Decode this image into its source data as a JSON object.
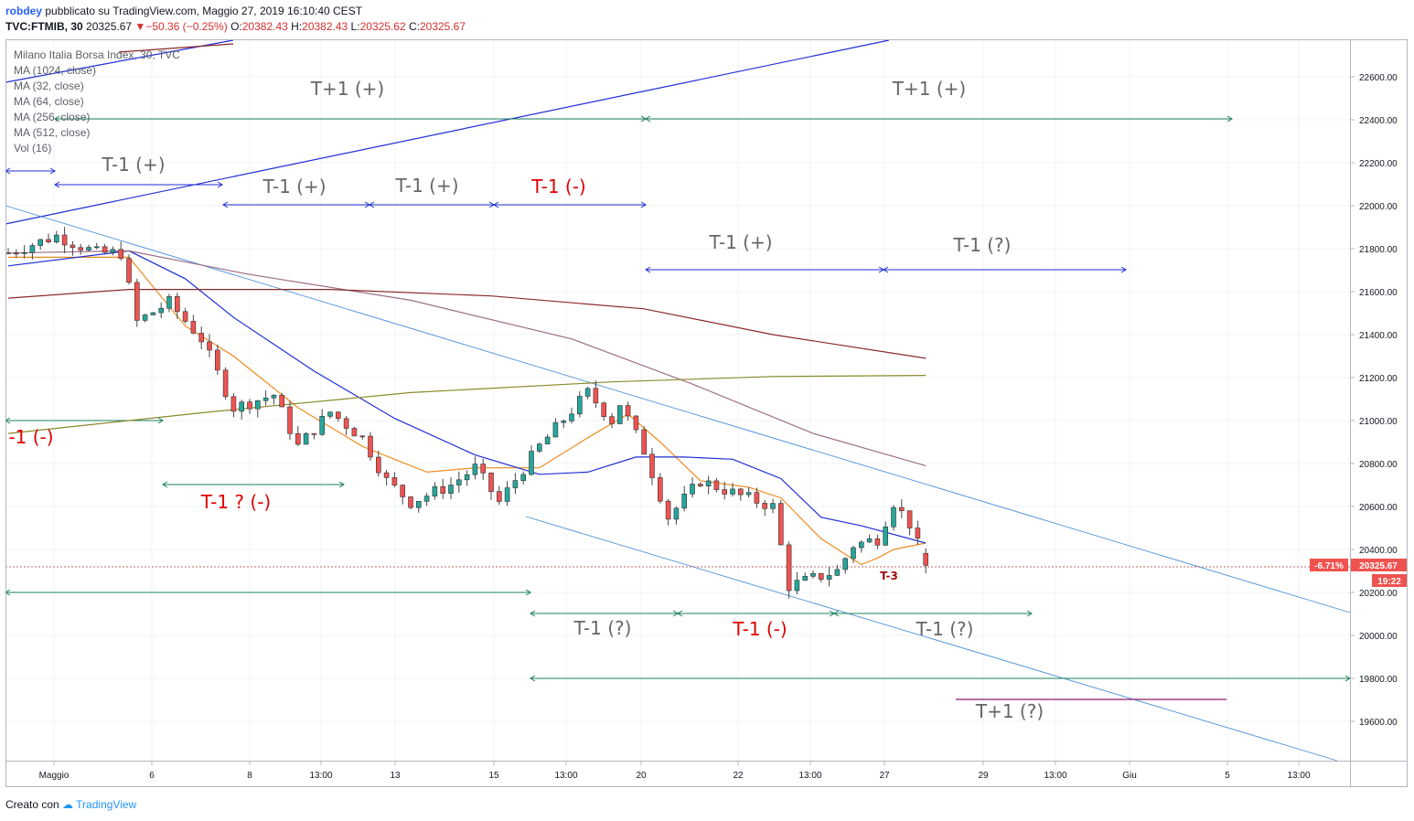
{
  "header": {
    "author": "robdey",
    "published": "pubblicato su TradingView.com, Maggio 27, 2019 16:10:40 CEST",
    "symbol": "TVC:FTMIB, 30",
    "price": "20325.67",
    "change": "−50.36 (−0.25%)",
    "open_label": "O:",
    "open": "20382.43",
    "high_label": "H:",
    "high": "20382.43",
    "low_label": "L:",
    "low": "20325.62",
    "close_label": "C:",
    "close": "20325.67"
  },
  "indicators": [
    "Milano Italia Borsa Index, 30, TVC",
    "MA (1024, close)",
    "MA (32, close)",
    "MA (64, close)",
    "MA (256, close)",
    "MA (512, close)",
    "Vol (16)"
  ],
  "price_badge": {
    "pct": "-6.71%",
    "price": "20325.67",
    "countdown": "19:22"
  },
  "footer": {
    "created": "Creato con",
    "brand": "TradingView"
  },
  "colors": {
    "up": "#26a69a",
    "down": "#ef5350",
    "blue": "#1f2ed6",
    "green": "#1b7f5a",
    "red": "#e00000",
    "gray": "#666666"
  },
  "chart_data": {
    "type": "candlestick",
    "y_axis": {
      "min": 19400,
      "max": 22750,
      "ticks": [
        22600,
        22400,
        22200,
        22000,
        21800,
        21600,
        21400,
        21200,
        21000,
        20800,
        20600,
        20400,
        20200,
        20000,
        19800,
        19600
      ],
      "tick_labels": [
        "22600.00",
        "22400.00",
        "22200.00",
        "22000.00",
        "21800.00",
        "21600.00",
        "21400.00",
        "21200.00",
        "21000.00",
        "20800.00",
        "20600.00",
        "20400.00",
        "20200.00",
        "20000.00",
        "19800.00",
        "19600.00"
      ]
    },
    "x_axis": {
      "tick_labels": [
        "Maggio",
        "6",
        "8",
        "13:00",
        "13",
        "15",
        "13:00",
        "20",
        "22",
        "13:00",
        "27",
        "29",
        "13:00",
        "Giu",
        "5",
        "13:00"
      ]
    },
    "close_path": [
      [
        0,
        21780
      ],
      [
        6,
        21860
      ],
      [
        11,
        21780
      ],
      [
        14,
        21780
      ],
      [
        16,
        21460
      ],
      [
        20,
        21550
      ],
      [
        24,
        21380
      ],
      [
        28,
        21060
      ],
      [
        33,
        21120
      ],
      [
        36,
        20880
      ],
      [
        40,
        21040
      ],
      [
        44,
        20920
      ],
      [
        47,
        20720
      ],
      [
        50,
        20620
      ],
      [
        55,
        20700
      ],
      [
        58,
        20780
      ],
      [
        61,
        20620
      ],
      [
        66,
        20880
      ],
      [
        72,
        21130
      ],
      [
        75,
        21000
      ],
      [
        76,
        21080
      ],
      [
        79,
        20860
      ],
      [
        82,
        20550
      ],
      [
        86,
        20720
      ],
      [
        91,
        20650
      ],
      [
        95,
        20600
      ],
      [
        97,
        20230
      ],
      [
        103,
        20300
      ],
      [
        105,
        20420
      ],
      [
        108,
        20450
      ],
      [
        110,
        20620
      ],
      [
        112,
        20520
      ],
      [
        114,
        20326
      ]
    ],
    "moving_averages": [
      {
        "name": "MA (32, close)",
        "color": "#f08c20",
        "values": [
          [
            0,
            21760
          ],
          [
            15,
            21760
          ],
          [
            22,
            21440
          ],
          [
            28,
            21300
          ],
          [
            36,
            21060
          ],
          [
            44,
            20880
          ],
          [
            52,
            20760
          ],
          [
            58,
            20780
          ],
          [
            66,
            20780
          ],
          [
            72,
            20920
          ],
          [
            77,
            21030
          ],
          [
            81,
            20900
          ],
          [
            86,
            20720
          ],
          [
            92,
            20690
          ],
          [
            96,
            20640
          ],
          [
            101,
            20450
          ],
          [
            106,
            20330
          ],
          [
            108,
            20360
          ],
          [
            110,
            20400
          ],
          [
            114,
            20430
          ]
        ]
      },
      {
        "name": "MA (64, close)",
        "color": "#1f2ed6",
        "values": [
          [
            0,
            21720
          ],
          [
            15,
            21790
          ],
          [
            22,
            21660
          ],
          [
            28,
            21480
          ],
          [
            38,
            21230
          ],
          [
            48,
            21010
          ],
          [
            58,
            20840
          ],
          [
            66,
            20750
          ],
          [
            72,
            20760
          ],
          [
            78,
            20830
          ],
          [
            84,
            20830
          ],
          [
            90,
            20820
          ],
          [
            96,
            20730
          ],
          [
            101,
            20550
          ],
          [
            106,
            20510
          ],
          [
            114,
            20430
          ]
        ]
      },
      {
        "name": "MA (256, close)",
        "color": "#9c6e86",
        "values": [
          [
            0,
            21780
          ],
          [
            15,
            21790
          ],
          [
            30,
            21680
          ],
          [
            50,
            21560
          ],
          [
            70,
            21380
          ],
          [
            85,
            21170
          ],
          [
            100,
            20940
          ],
          [
            114,
            20790
          ]
        ]
      },
      {
        "name": "MA (512, close)",
        "color": "#8a2a2a",
        "values": [
          [
            0,
            21570
          ],
          [
            15,
            21610
          ],
          [
            40,
            21610
          ],
          [
            60,
            21580
          ],
          [
            79,
            21520
          ],
          [
            95,
            21400
          ],
          [
            114,
            21290
          ]
        ]
      },
      {
        "name": "MA (1024, close)",
        "color": "#8a8a2a",
        "values": [
          [
            0,
            20940
          ],
          [
            25,
            21040
          ],
          [
            50,
            21130
          ],
          [
            75,
            21180
          ],
          [
            95,
            21205
          ],
          [
            114,
            21210
          ]
        ]
      }
    ],
    "annotations": [
      {
        "text": "T+1 (+)",
        "color": "gray"
      },
      {
        "text": "T+1 (+)",
        "color": "gray"
      },
      {
        "text": "T-1 (+)",
        "color": "gray"
      },
      {
        "text": "T-1 (+)",
        "color": "gray"
      },
      {
        "text": "T-1 (+)",
        "color": "gray"
      },
      {
        "text": "T-1 (-)",
        "color": "red"
      },
      {
        "text": "T-1 (+)",
        "color": "gray"
      },
      {
        "text": "T-1 (?)",
        "color": "gray"
      },
      {
        "text": "-1 (-)",
        "color": "red"
      },
      {
        "text": "T-1 ? (-)",
        "color": "red"
      },
      {
        "text": "T-1 (?)",
        "color": "gray"
      },
      {
        "text": "T-1 (-)",
        "color": "red"
      },
      {
        "text": "T-1 (?)",
        "color": "gray"
      },
      {
        "text": "T+1 (?)",
        "color": "gray"
      },
      {
        "text": "T-3",
        "color": "darkred"
      }
    ]
  }
}
